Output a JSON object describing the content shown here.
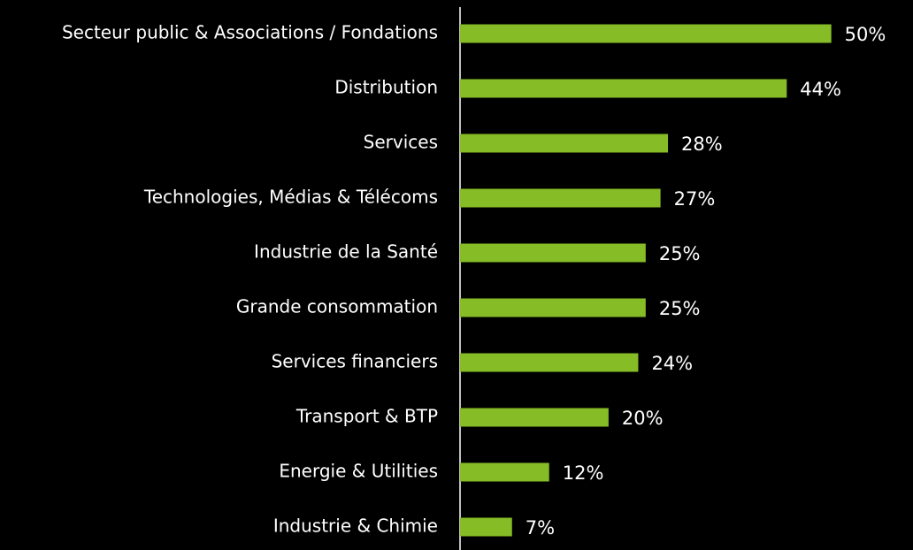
{
  "chart_data": {
    "type": "barh",
    "categories": [
      "Secteur public & Associations / Fondations",
      "Distribution",
      "Services",
      "Technologies, Médias & Télécoms",
      "Industrie de la Santé",
      "Grande consommation",
      "Services financiers",
      "Transport & BTP",
      "Energie & Utilities",
      "Industrie & Chimie"
    ],
    "values": [
      50,
      44,
      28,
      27,
      25,
      25,
      24,
      20,
      12,
      7
    ],
    "value_labels": [
      "50%",
      "44%",
      "28%",
      "27%",
      "25%",
      "25%",
      "24%",
      "20%",
      "12%",
      "7%"
    ],
    "color": "#86bc25",
    "xlim": [
      0,
      61
    ]
  }
}
